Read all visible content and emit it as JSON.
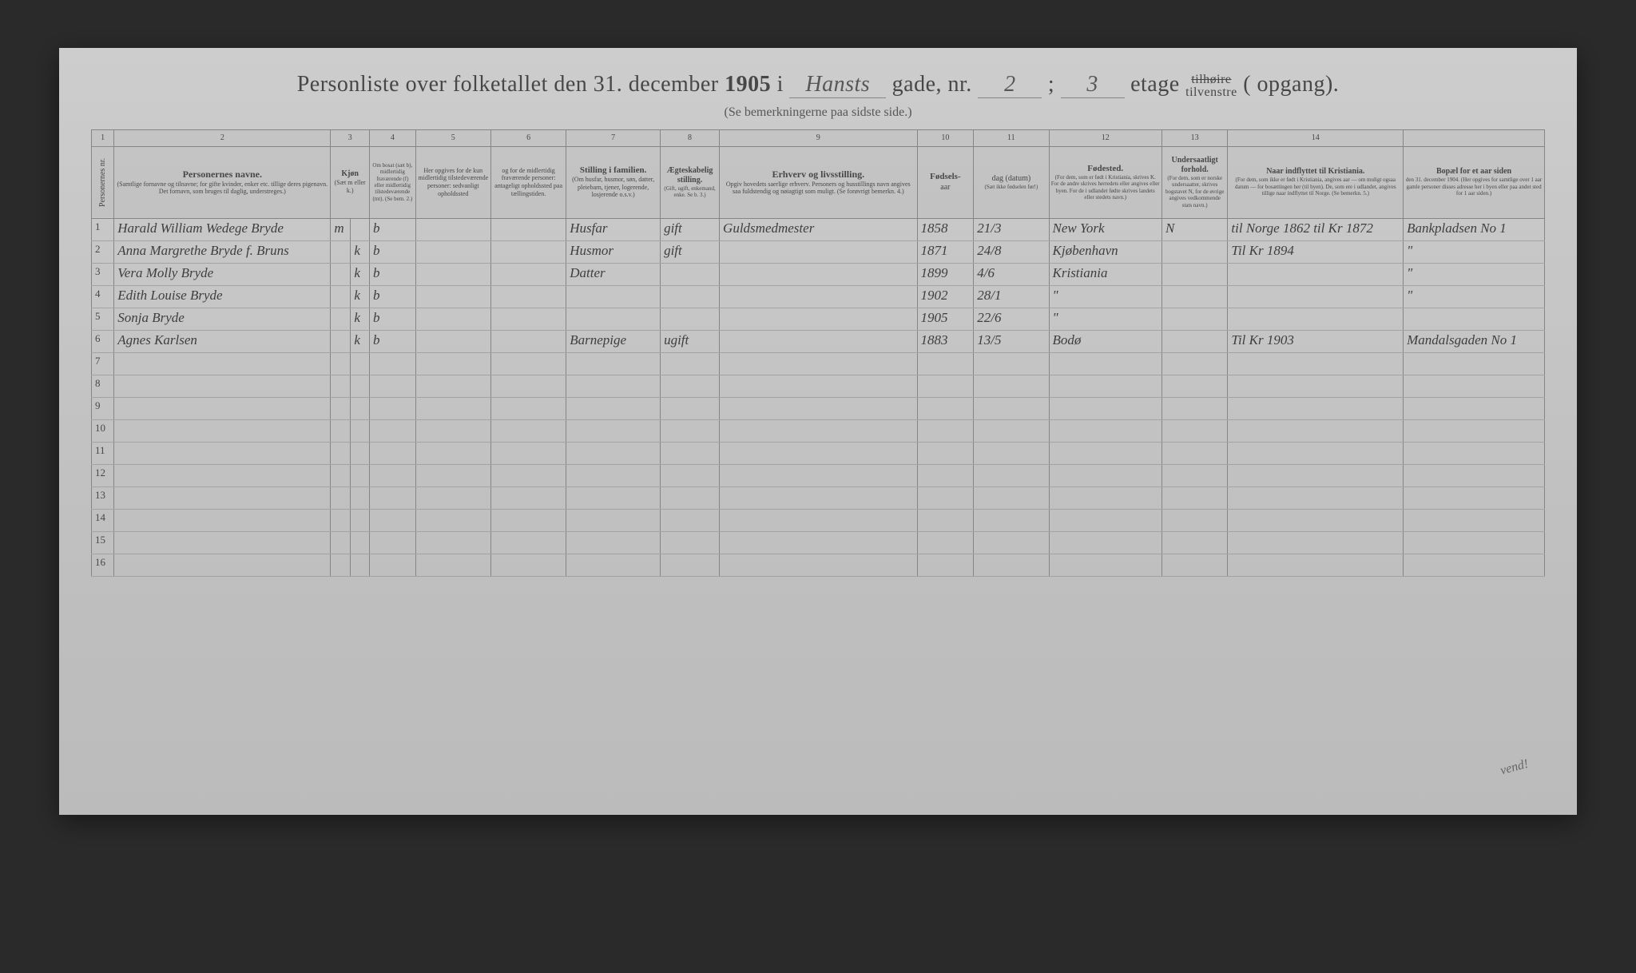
{
  "title": {
    "prefix": "Personliste over folketallet den 31. december",
    "year": "1905",
    "i": "i",
    "street_hw": "Hansts",
    "gade": "gade, nr.",
    "nr_hw": "2",
    "etage_sep": ";",
    "etage_hw": "3",
    "etage": "etage",
    "tilhoire": "tilhøire",
    "tilvenstre": "tilvenstre",
    "opgang": "( opgang).",
    "subtitle": "(Se bemerkningerne paa sidste side.)"
  },
  "col_nums": [
    "1",
    "2",
    "3",
    "4",
    "5",
    "6",
    "7",
    "8",
    "9",
    "10",
    "11",
    "12",
    "13",
    "14"
  ],
  "headers": {
    "nr": "Personernes nr.",
    "navne": "Personernes navne.",
    "navne_sub": "(Samtlige fornavne og tilnavne; for gifte kvinder, enker etc. tillige deres pigenavn. Det fornavn, som bruges til daglig, understreges.)",
    "kjon": "Kjøn",
    "kjon_sub": "(Sæt m eller k.)",
    "bosat": "Om bosat (sæt b), midlertidig fraværende (f) eller midlertidig tilstedeværende (mt). (Se bem. 2.)",
    "opgives_f": "Her opgives for de kun midlertidig tilstedeværende personer: sedvanligt opholdssted",
    "opgives_mt": "og for de midlertidig fraværende personer: antageligt opholdssted paa tællingstiden.",
    "stilling": "Stilling i familien.",
    "stilling_sub": "(Om husfar, husmor, søn, datter, pleiebarn, tjener, logerende, losjerende o.s.v.)",
    "aegte": "Ægteskabelig stilling.",
    "aegte_sub": "(Gift, ugift, enkemand, enke. Se b. 3.)",
    "erhverv": "Erhverv og livsstilling.",
    "erhverv_sub": "Opgiv hovedets saerlige erhverv. Personers og husstillings navn angives saa fuldstendig og nøiagtigt som muligt. (Se forøvrigt bemerkn. 4.)",
    "fodsels": "Fødsels-",
    "aar": "aar",
    "dag": "dag (datum)",
    "dag_sub": "(Sæt ikke fødselen før!)",
    "fodested": "Fødested.",
    "fodested_sub": "(For dem, som er født i Kristiania, skrives K. For de andre skrives herredets eller angives eller byen. For de i udlandet fødte skrives landets eller stedets navn.)",
    "undersaat": "Undersaatligt forhold.",
    "undersaat_sub": "(For dem, som er norske undersaatter, skrives bogstavet N, for de øvrige angives vedkommende stats navn.)",
    "indflyttet": "Naar indflyttet til Kristiania.",
    "indflyttet_sub": "(For dem, som ikke er født i Kristiania, angives aar — om muligt ogsaa datum — for bosættingen her (til byen). De, som ere i udlandet, angives tillige naar indflyttet til Norge. (Se bemerkn. 5.)",
    "bopael": "Bopæl for et aar siden",
    "bopael_sub": "den 31. december 1904. (Her opgives for samtlige over 1 aar gamle personer disses adresse her i byen eller paa andet sted for 1 aar siden.)"
  },
  "rows": [
    {
      "nr": "1",
      "name": "Harald William Wedege Bryde",
      "gm": "m",
      "gk": "",
      "b": "b",
      "n1": "",
      "n2": "",
      "stilling": "Husfar",
      "aegte": "gift",
      "erhverv": "Guldsmedmester",
      "aar": "1858",
      "dag": "21/3",
      "fodested": "New York",
      "under": "N",
      "indflyt": "til Norge 1862 til Kr 1872",
      "bopael": "Bankpladsen No 1"
    },
    {
      "nr": "2",
      "name": "Anna Margrethe Bryde f. Bruns",
      "gm": "",
      "gk": "k",
      "b": "b",
      "n1": "",
      "n2": "",
      "stilling": "Husmor",
      "aegte": "gift",
      "erhverv": "",
      "aar": "1871",
      "dag": "24/8",
      "fodested": "Kjøbenhavn",
      "under": "",
      "indflyt": "Til Kr 1894",
      "bopael": "\""
    },
    {
      "nr": "3",
      "name": "Vera Molly Bryde",
      "gm": "",
      "gk": "k",
      "b": "b",
      "n1": "",
      "n2": "",
      "stilling": "Datter",
      "aegte": "",
      "erhverv": "",
      "aar": "1899",
      "dag": "4/6",
      "fodested": "Kristiania",
      "under": "",
      "indflyt": "",
      "bopael": "\""
    },
    {
      "nr": "4",
      "name": "Edith Louise Bryde",
      "gm": "",
      "gk": "k",
      "b": "b",
      "n1": "",
      "n2": "",
      "stilling": "",
      "aegte": "",
      "erhverv": "",
      "aar": "1902",
      "dag": "28/1",
      "fodested": "\"",
      "under": "",
      "indflyt": "",
      "bopael": "\""
    },
    {
      "nr": "5",
      "name": "Sonja Bryde",
      "gm": "",
      "gk": "k",
      "b": "b",
      "n1": "",
      "n2": "",
      "stilling": "",
      "aegte": "",
      "erhverv": "",
      "aar": "1905",
      "dag": "22/6",
      "fodested": "\"",
      "under": "",
      "indflyt": "",
      "bopael": ""
    },
    {
      "nr": "6",
      "name": "Agnes Karlsen",
      "gm": "",
      "gk": "k",
      "b": "b",
      "n1": "",
      "n2": "",
      "stilling": "Barnepige",
      "aegte": "ugift",
      "erhverv": "",
      "aar": "1883",
      "dag": "13/5",
      "fodested": "Bodø",
      "under": "",
      "indflyt": "Til Kr 1903",
      "bopael": "Mandalsgaden No 1"
    },
    {
      "nr": "7",
      "name": "",
      "gm": "",
      "gk": "",
      "b": "",
      "n1": "",
      "n2": "",
      "stilling": "",
      "aegte": "",
      "erhverv": "",
      "aar": "",
      "dag": "",
      "fodested": "",
      "under": "",
      "indflyt": "",
      "bopael": ""
    },
    {
      "nr": "8",
      "name": "",
      "gm": "",
      "gk": "",
      "b": "",
      "n1": "",
      "n2": "",
      "stilling": "",
      "aegte": "",
      "erhverv": "",
      "aar": "",
      "dag": "",
      "fodested": "",
      "under": "",
      "indflyt": "",
      "bopael": ""
    },
    {
      "nr": "9",
      "name": "",
      "gm": "",
      "gk": "",
      "b": "",
      "n1": "",
      "n2": "",
      "stilling": "",
      "aegte": "",
      "erhverv": "",
      "aar": "",
      "dag": "",
      "fodested": "",
      "under": "",
      "indflyt": "",
      "bopael": ""
    },
    {
      "nr": "10",
      "name": "",
      "gm": "",
      "gk": "",
      "b": "",
      "n1": "",
      "n2": "",
      "stilling": "",
      "aegte": "",
      "erhverv": "",
      "aar": "",
      "dag": "",
      "fodested": "",
      "under": "",
      "indflyt": "",
      "bopael": ""
    },
    {
      "nr": "11",
      "name": "",
      "gm": "",
      "gk": "",
      "b": "",
      "n1": "",
      "n2": "",
      "stilling": "",
      "aegte": "",
      "erhverv": "",
      "aar": "",
      "dag": "",
      "fodested": "",
      "under": "",
      "indflyt": "",
      "bopael": ""
    },
    {
      "nr": "12",
      "name": "",
      "gm": "",
      "gk": "",
      "b": "",
      "n1": "",
      "n2": "",
      "stilling": "",
      "aegte": "",
      "erhverv": "",
      "aar": "",
      "dag": "",
      "fodested": "",
      "under": "",
      "indflyt": "",
      "bopael": ""
    },
    {
      "nr": "13",
      "name": "",
      "gm": "",
      "gk": "",
      "b": "",
      "n1": "",
      "n2": "",
      "stilling": "",
      "aegte": "",
      "erhverv": "",
      "aar": "",
      "dag": "",
      "fodested": "",
      "under": "",
      "indflyt": "",
      "bopael": ""
    },
    {
      "nr": "14",
      "name": "",
      "gm": "",
      "gk": "",
      "b": "",
      "n1": "",
      "n2": "",
      "stilling": "",
      "aegte": "",
      "erhverv": "",
      "aar": "",
      "dag": "",
      "fodested": "",
      "under": "",
      "indflyt": "",
      "bopael": ""
    },
    {
      "nr": "15",
      "name": "",
      "gm": "",
      "gk": "",
      "b": "",
      "n1": "",
      "n2": "",
      "stilling": "",
      "aegte": "",
      "erhverv": "",
      "aar": "",
      "dag": "",
      "fodested": "",
      "under": "",
      "indflyt": "",
      "bopael": ""
    },
    {
      "nr": "16",
      "name": "",
      "gm": "",
      "gk": "",
      "b": "",
      "n1": "",
      "n2": "",
      "stilling": "",
      "aegte": "",
      "erhverv": "",
      "aar": "",
      "dag": "",
      "fodested": "",
      "under": "",
      "indflyt": "",
      "bopael": ""
    }
  ],
  "vend": "vend!"
}
